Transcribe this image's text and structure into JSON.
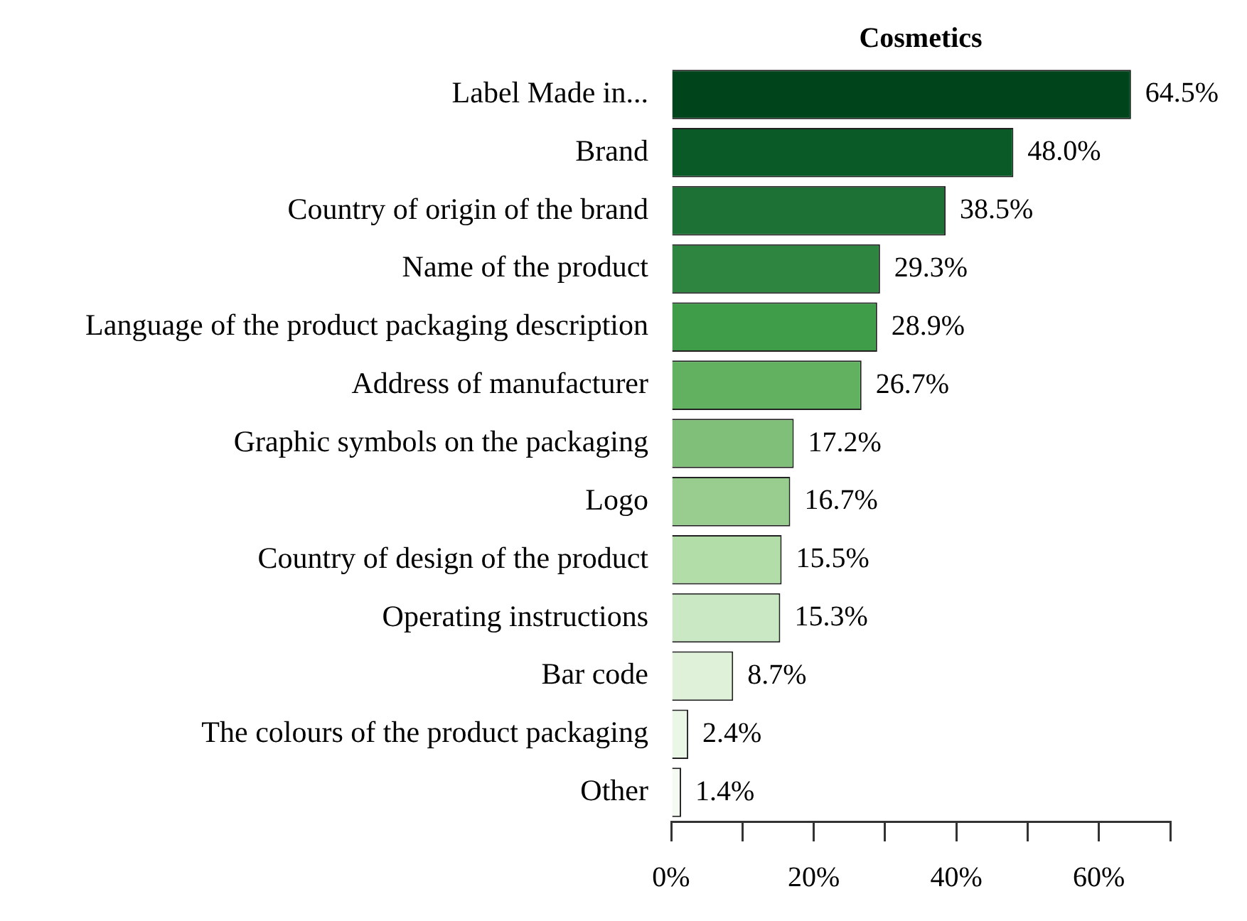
{
  "chart_data": {
    "type": "bar",
    "orientation": "horizontal",
    "title": "Cosmetics",
    "categories": [
      "Label Made in...",
      "Brand",
      "Country of origin of the brand",
      "Name of the product",
      "Language of the product packaging description",
      "Address of manufacturer",
      "Graphic symbols on the packaging",
      "Logo",
      "Country of design of the product",
      "Operating instructions",
      "Bar code",
      "The colours of the product packaging",
      "Other"
    ],
    "values": [
      64.5,
      48.0,
      38.5,
      29.3,
      28.9,
      26.7,
      17.2,
      16.7,
      15.5,
      15.3,
      8.7,
      2.4,
      1.4
    ],
    "value_labels": [
      "64.5%",
      "48.0%",
      "38.5%",
      "29.3%",
      "28.9%",
      "26.7%",
      "17.2%",
      "16.7%",
      "15.5%",
      "15.3%",
      "8.7%",
      "2.4%",
      "1.4%"
    ],
    "colors": [
      "#00441b",
      "#0a5a28",
      "#1d7134",
      "#2e8540",
      "#3f9d4a",
      "#62b161",
      "#80bf79",
      "#99cc8f",
      "#b2dca8",
      "#cbe8c4",
      "#dff2d9",
      "#eaf6e6",
      "#f5fbf2"
    ],
    "xlim": [
      0,
      70
    ],
    "xticks": [
      {
        "value": 0,
        "label": "0%"
      },
      {
        "value": 10,
        "label": null
      },
      {
        "value": 20,
        "label": "20%"
      },
      {
        "value": 30,
        "label": null
      },
      {
        "value": 40,
        "label": "40%"
      },
      {
        "value": 50,
        "label": null
      },
      {
        "value": 60,
        "label": "60%"
      },
      {
        "value": 70,
        "label": null
      }
    ],
    "grid": false,
    "legend": false
  }
}
